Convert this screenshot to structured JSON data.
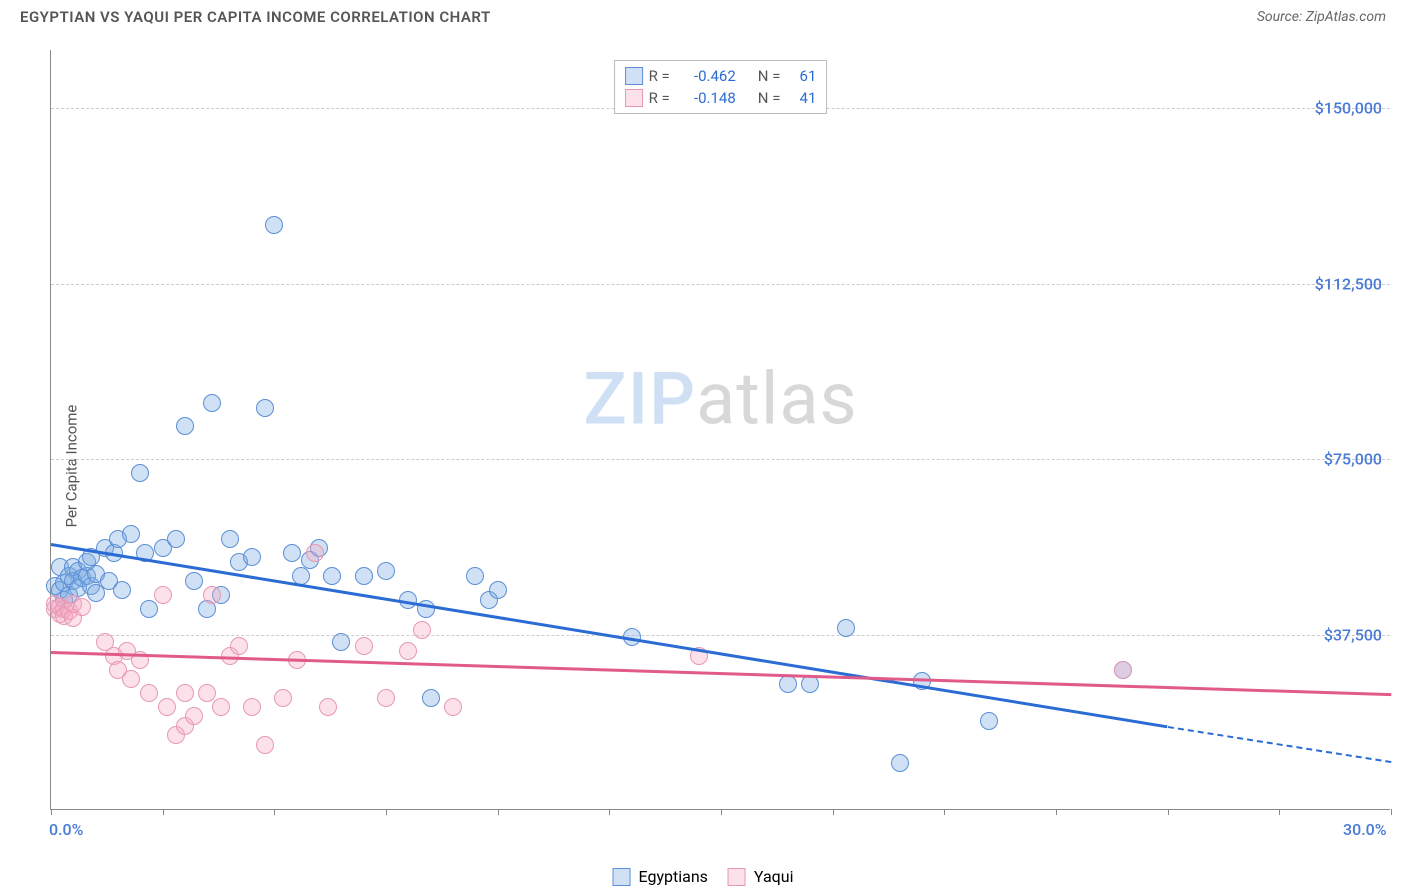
{
  "title": "EGYPTIAN VS YAQUI PER CAPITA INCOME CORRELATION CHART",
  "source": "Source: ZipAtlas.com",
  "ylabel": "Per Capita Income",
  "watermark": {
    "part1": "ZIP",
    "part2": "atlas"
  },
  "chart": {
    "type": "scatter",
    "xlim": [
      0,
      30
    ],
    "ylim": [
      0,
      162500
    ],
    "x_tick_positions": [
      0,
      2.5,
      5,
      7.5,
      10,
      12.5,
      15,
      17.5,
      20,
      22.5,
      25,
      27.5,
      30
    ],
    "x_tick_labels_visible": {
      "0": "0.0%",
      "30": "30.0%"
    },
    "y_gridlines": [
      37500,
      75000,
      112500,
      150000
    ],
    "y_tick_labels": {
      "37500": "$37,500",
      "75000": "$75,000",
      "112500": "$112,500",
      "150000": "$150,000"
    },
    "background_color": "#ffffff",
    "grid_color": "#cccccc",
    "axis_color": "#888888",
    "axis_label_color": "#4a7bd6",
    "marker_radius": 9,
    "marker_stroke_width": 1.5,
    "marker_fill_opacity": 0.35
  },
  "series": [
    {
      "name": "Egyptians",
      "color_stroke": "#5b8fd6",
      "color_fill": "rgba(120,170,225,0.35)",
      "trend_color": "#2b6cd4",
      "R": "-0.462",
      "N": "61",
      "trend": {
        "x1": 0,
        "y1": 57000,
        "x2": 25,
        "y2": 18000,
        "dash_to_x": 30,
        "dash_to_y": 10500
      },
      "points": [
        [
          0.1,
          48000
        ],
        [
          0.2,
          52000
        ],
        [
          0.2,
          47000
        ],
        [
          0.3,
          48500
        ],
        [
          0.3,
          45000
        ],
        [
          0.4,
          50000
        ],
        [
          0.4,
          46000
        ],
        [
          0.5,
          49000
        ],
        [
          0.5,
          52000
        ],
        [
          0.6,
          51000
        ],
        [
          0.6,
          47500
        ],
        [
          0.7,
          49500
        ],
        [
          0.8,
          50000
        ],
        [
          0.8,
          53000
        ],
        [
          0.9,
          54000
        ],
        [
          0.9,
          48000
        ],
        [
          1.0,
          50500
        ],
        [
          1.0,
          46500
        ],
        [
          1.2,
          56000
        ],
        [
          1.3,
          49000
        ],
        [
          1.4,
          55000
        ],
        [
          1.5,
          58000
        ],
        [
          1.6,
          47000
        ],
        [
          1.8,
          59000
        ],
        [
          2.0,
          72000
        ],
        [
          2.1,
          55000
        ],
        [
          2.2,
          43000
        ],
        [
          2.5,
          56000
        ],
        [
          2.8,
          58000
        ],
        [
          3.0,
          82000
        ],
        [
          3.2,
          49000
        ],
        [
          3.5,
          43000
        ],
        [
          3.6,
          87000
        ],
        [
          3.8,
          46000
        ],
        [
          4.0,
          58000
        ],
        [
          4.2,
          53000
        ],
        [
          4.5,
          54000
        ],
        [
          4.8,
          86000
        ],
        [
          5.0,
          125000
        ],
        [
          5.4,
          55000
        ],
        [
          5.6,
          50000
        ],
        [
          5.8,
          53500
        ],
        [
          6.0,
          56000
        ],
        [
          6.3,
          50000
        ],
        [
          6.5,
          36000
        ],
        [
          7.0,
          50000
        ],
        [
          7.5,
          51000
        ],
        [
          8.0,
          45000
        ],
        [
          8.4,
          43000
        ],
        [
          8.5,
          24000
        ],
        [
          9.5,
          50000
        ],
        [
          9.8,
          45000
        ],
        [
          10.0,
          47000
        ],
        [
          13.0,
          37000
        ],
        [
          16.5,
          27000
        ],
        [
          17.0,
          27000
        ],
        [
          17.8,
          39000
        ],
        [
          19.0,
          10000
        ],
        [
          19.5,
          27500
        ],
        [
          21.0,
          19000
        ],
        [
          24.0,
          30000
        ]
      ]
    },
    {
      "name": "Yaqui",
      "color_stroke": "#e699b3",
      "color_fill": "rgba(245,170,195,0.35)",
      "trend_color": "#e05a8a",
      "R": "-0.148",
      "N": "41",
      "trend": {
        "x1": 0,
        "y1": 34000,
        "x2": 30,
        "y2": 25000
      },
      "points": [
        [
          0.1,
          44000
        ],
        [
          0.1,
          43000
        ],
        [
          0.2,
          42000
        ],
        [
          0.2,
          43500
        ],
        [
          0.3,
          43000
        ],
        [
          0.3,
          41500
        ],
        [
          0.4,
          42500
        ],
        [
          0.5,
          41000
        ],
        [
          0.5,
          44000
        ],
        [
          0.7,
          43500
        ],
        [
          1.2,
          36000
        ],
        [
          1.4,
          33000
        ],
        [
          1.5,
          30000
        ],
        [
          1.7,
          34000
        ],
        [
          1.8,
          28000
        ],
        [
          2.0,
          32000
        ],
        [
          2.2,
          25000
        ],
        [
          2.5,
          46000
        ],
        [
          2.6,
          22000
        ],
        [
          2.8,
          16000
        ],
        [
          3.0,
          18000
        ],
        [
          3.0,
          25000
        ],
        [
          3.2,
          20000
        ],
        [
          3.5,
          25000
        ],
        [
          3.6,
          46000
        ],
        [
          3.8,
          22000
        ],
        [
          4.0,
          33000
        ],
        [
          4.2,
          35000
        ],
        [
          4.5,
          22000
        ],
        [
          4.8,
          14000
        ],
        [
          5.2,
          24000
        ],
        [
          5.5,
          32000
        ],
        [
          5.9,
          55000
        ],
        [
          6.2,
          22000
        ],
        [
          7.0,
          35000
        ],
        [
          7.5,
          24000
        ],
        [
          8.0,
          34000
        ],
        [
          8.3,
          38500
        ],
        [
          9.0,
          22000
        ],
        [
          14.5,
          33000
        ],
        [
          24.0,
          30000
        ]
      ]
    }
  ],
  "legend_top": {
    "R_label": "R =",
    "N_label": "N =",
    "label_color": "#555555",
    "value_color": "#2b6cd4"
  },
  "legend_bottom": {
    "items": [
      "Egyptians",
      "Yaqui"
    ]
  }
}
